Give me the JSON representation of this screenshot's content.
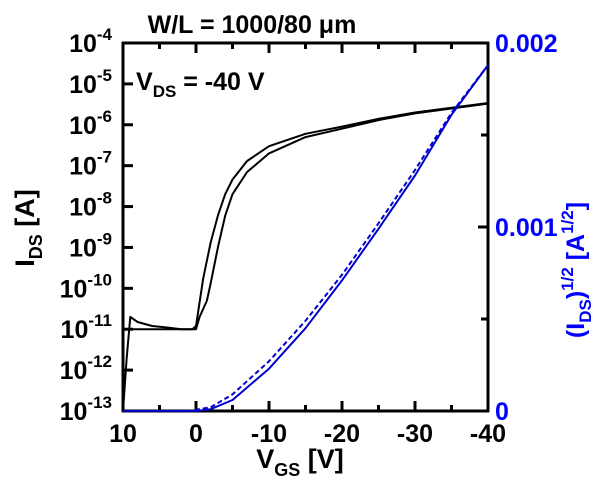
{
  "chart_data": {
    "type": "line",
    "title": "W/L = 1000/80 μm",
    "annotation": {
      "main": "V",
      "sub": "DS",
      "rest": " = -40 V"
    },
    "xlabel": {
      "main": "V",
      "sub": "GS",
      "rest": " [V]"
    },
    "ylabel_left": {
      "main": "I",
      "sub": "DS",
      "rest": " [A]"
    },
    "ylabel_right": {
      "pre": "(I",
      "sub": "DS",
      "post": ")",
      "sup": "1/2",
      "unit_pre": " [A",
      "unit_sup": "1/2",
      "unit_post": "]"
    },
    "x_ticks": [
      "10",
      "0",
      "-10",
      "-20",
      "-30",
      "-40"
    ],
    "x_tick_values": [
      10,
      0,
      -10,
      -20,
      -30,
      -40
    ],
    "xlim": [
      10,
      -40
    ],
    "y_left_scale": "log",
    "y_left_ticks_exp": [
      "-4",
      "-5",
      "-6",
      "-7",
      "-8",
      "-9",
      "-10",
      "-11",
      "-12",
      "-13"
    ],
    "y_left_tick_base": "10",
    "ylim_left": [
      1e-13,
      0.0001
    ],
    "y_right_ticks": [
      "0.002",
      "0.001",
      "0"
    ],
    "y_right_tick_values": [
      0.002,
      0.001,
      0
    ],
    "ylim_right": [
      0,
      0.002
    ],
    "grid": false,
    "colors": {
      "left_axis": "#000000",
      "right_axis": "#0000ff",
      "id_curve": "#000000",
      "sqrt_curve": "#0000cc"
    },
    "series": [
      {
        "axis": "left",
        "style": "solid",
        "points": [
          [
            10,
            1e-13
          ],
          [
            9.5,
            2e-12
          ],
          [
            9,
            2e-11
          ],
          [
            8,
            1.5e-11
          ],
          [
            6,
            1.2e-11
          ],
          [
            4,
            1.1e-11
          ],
          [
            2,
            1e-11
          ],
          [
            0.5,
            1e-11
          ],
          [
            0,
            1.2e-11
          ],
          [
            -1,
            1.8e-10
          ],
          [
            -2,
            1.3e-09
          ],
          [
            -3,
            6e-09
          ],
          [
            -4,
            2e-08
          ],
          [
            -5,
            4.6e-08
          ],
          [
            -7,
            1.3e-07
          ],
          [
            -10,
            3e-07
          ],
          [
            -15,
            6e-07
          ],
          [
            -20,
            9e-07
          ],
          [
            -25,
            1.4e-06
          ],
          [
            -30,
            2e-06
          ],
          [
            -35,
            2.6e-06
          ],
          [
            -40,
            3.4e-06
          ]
        ]
      },
      {
        "axis": "left",
        "style": "solid",
        "points": [
          [
            10,
            1e-11
          ],
          [
            9,
            1e-11
          ],
          [
            7,
            1e-11
          ],
          [
            5,
            1e-11
          ],
          [
            2,
            1e-11
          ],
          [
            0,
            1e-11
          ],
          [
            -0.5,
            2e-11
          ],
          [
            -1.5,
            5e-11
          ],
          [
            -2,
            1.3e-10
          ],
          [
            -3,
            1e-09
          ],
          [
            -4,
            6e-09
          ],
          [
            -5,
            2e-08
          ],
          [
            -7,
            7e-08
          ],
          [
            -10,
            2e-07
          ],
          [
            -15,
            5e-07
          ],
          [
            -20,
            8e-07
          ],
          [
            -25,
            1.3e-06
          ],
          [
            -30,
            1.9e-06
          ],
          [
            -35,
            2.5e-06
          ],
          [
            -40,
            3.3e-06
          ]
        ]
      },
      {
        "axis": "right",
        "style": "solid",
        "points": [
          [
            10,
            0
          ],
          [
            0,
            0
          ],
          [
            -2,
            1e-05
          ],
          [
            -5,
            6e-05
          ],
          [
            -10,
            0.00023
          ],
          [
            -15,
            0.00045
          ],
          [
            -20,
            0.00071
          ],
          [
            -25,
            0.00099
          ],
          [
            -30,
            0.00128
          ],
          [
            -35,
            0.00161
          ],
          [
            -40,
            0.00188
          ]
        ]
      },
      {
        "axis": "right",
        "style": "dashed",
        "points": [
          [
            10,
            0
          ],
          [
            1,
            0
          ],
          [
            -2,
            2e-05
          ],
          [
            -5,
            9e-05
          ],
          [
            -10,
            0.00027
          ],
          [
            -15,
            0.00049
          ],
          [
            -20,
            0.00074
          ],
          [
            -25,
            0.00102
          ],
          [
            -30,
            0.00131
          ],
          [
            -35,
            0.00162
          ],
          [
            -40,
            0.00188
          ]
        ]
      }
    ]
  }
}
